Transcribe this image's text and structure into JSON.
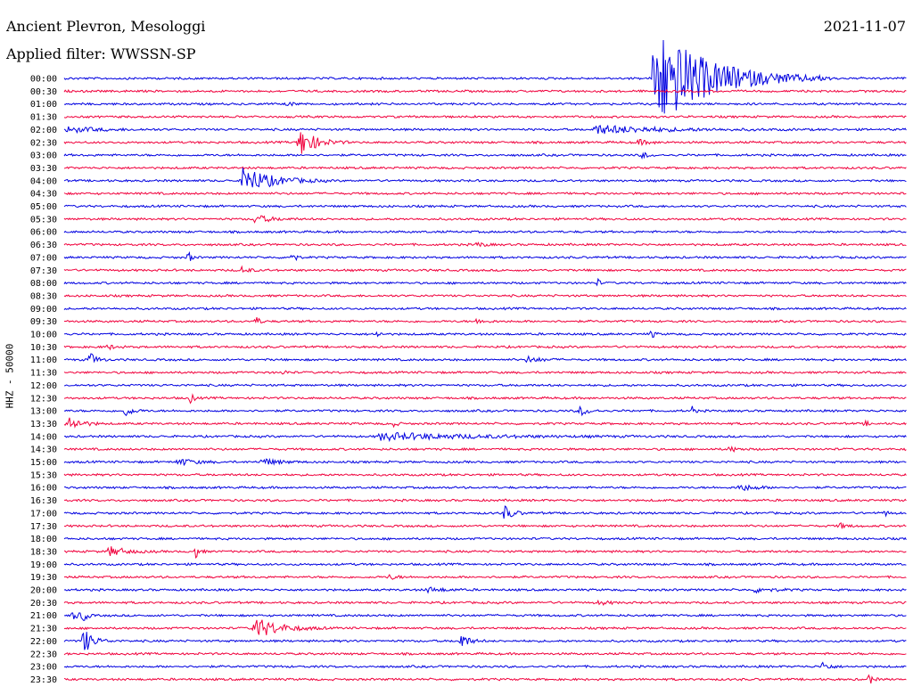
{
  "header": {
    "title": "Ancient Plevron, Mesologgi",
    "subtitle": "Applied filter: WWSSN-SP",
    "date": "2021-11-07"
  },
  "chart_data": {
    "type": "line",
    "title": "Ancient Plevron, Mesologgi",
    "subtitle": "Applied filter: WWSSN-SP",
    "date": "2021-11-07",
    "ylabel": "HHZ - 50000",
    "trace_colors": [
      "#0000e0",
      "#f0003c"
    ],
    "rows": [
      {
        "label": "00:00",
        "events": [
          {
            "x": 0.7,
            "amp": 60,
            "dur": 0.07
          }
        ]
      },
      {
        "label": "00:30",
        "events": []
      },
      {
        "label": "01:00",
        "events": [
          {
            "x": 0.265,
            "amp": 4,
            "dur": 0.005
          }
        ]
      },
      {
        "label": "01:30",
        "events": []
      },
      {
        "label": "02:00",
        "events": [
          {
            "x": 0.63,
            "amp": 5,
            "dur": 0.08
          },
          {
            "x": 0.003,
            "amp": 3,
            "dur": 0.04
          }
        ]
      },
      {
        "label": "02:30",
        "events": [
          {
            "x": 0.278,
            "amp": 18,
            "dur": 0.02
          },
          {
            "x": 0.68,
            "amp": 3,
            "dur": 0.015
          }
        ]
      },
      {
        "label": "03:00",
        "events": [
          {
            "x": 0.687,
            "amp": 5,
            "dur": 0.005
          }
        ]
      },
      {
        "label": "03:30",
        "events": []
      },
      {
        "label": "04:00",
        "events": [
          {
            "x": 0.212,
            "amp": 16,
            "dur": 0.035
          }
        ]
      },
      {
        "label": "04:30",
        "events": []
      },
      {
        "label": "05:00",
        "events": []
      },
      {
        "label": "05:30",
        "events": [
          {
            "x": 0.225,
            "amp": 5,
            "dur": 0.02
          }
        ]
      },
      {
        "label": "06:00",
        "events": []
      },
      {
        "label": "06:30",
        "events": [
          {
            "x": 0.49,
            "amp": 3,
            "dur": 0.01
          }
        ]
      },
      {
        "label": "07:00",
        "events": [
          {
            "x": 0.148,
            "amp": 6,
            "dur": 0.004
          },
          {
            "x": 0.27,
            "amp": 12,
            "dur": 0.004
          }
        ]
      },
      {
        "label": "07:30",
        "events": [
          {
            "x": 0.21,
            "amp": 4,
            "dur": 0.01
          }
        ]
      },
      {
        "label": "08:00",
        "events": [
          {
            "x": 0.633,
            "amp": 5,
            "dur": 0.003
          }
        ]
      },
      {
        "label": "08:30",
        "events": []
      },
      {
        "label": "09:00",
        "events": []
      },
      {
        "label": "09:30",
        "events": [
          {
            "x": 0.228,
            "amp": 5,
            "dur": 0.005
          },
          {
            "x": 0.49,
            "amp": 3,
            "dur": 0.01
          }
        ]
      },
      {
        "label": "10:00",
        "events": [
          {
            "x": 0.37,
            "amp": 5,
            "dur": 0.004
          },
          {
            "x": 0.697,
            "amp": 5,
            "dur": 0.004
          }
        ]
      },
      {
        "label": "10:30",
        "events": [
          {
            "x": 0.05,
            "amp": 3,
            "dur": 0.01
          }
        ]
      },
      {
        "label": "11:00",
        "events": [
          {
            "x": 0.03,
            "amp": 9,
            "dur": 0.008
          },
          {
            "x": 0.55,
            "amp": 4,
            "dur": 0.015
          }
        ]
      },
      {
        "label": "11:30",
        "events": [
          {
            "x": 0.26,
            "amp": 3,
            "dur": 0.005
          }
        ]
      },
      {
        "label": "12:00",
        "events": []
      },
      {
        "label": "12:30",
        "events": [
          {
            "x": 0.15,
            "amp": 9,
            "dur": 0.004
          }
        ]
      },
      {
        "label": "13:00",
        "events": [
          {
            "x": 0.072,
            "amp": 6,
            "dur": 0.01
          },
          {
            "x": 0.612,
            "amp": 6,
            "dur": 0.01
          },
          {
            "x": 0.745,
            "amp": 6,
            "dur": 0.003
          }
        ]
      },
      {
        "label": "13:30",
        "events": [
          {
            "x": 0.003,
            "amp": 10,
            "dur": 0.015
          },
          {
            "x": 0.39,
            "amp": 4,
            "dur": 0.005
          },
          {
            "x": 0.95,
            "amp": 3,
            "dur": 0.005
          }
        ]
      },
      {
        "label": "14:00",
        "events": [
          {
            "x": 0.375,
            "amp": 4,
            "dur": 0.12
          }
        ]
      },
      {
        "label": "14:30",
        "events": [
          {
            "x": 0.79,
            "amp": 3,
            "dur": 0.01
          }
        ]
      },
      {
        "label": "15:00",
        "events": [
          {
            "x": 0.135,
            "amp": 4,
            "dur": 0.02
          },
          {
            "x": 0.235,
            "amp": 4,
            "dur": 0.02
          }
        ]
      },
      {
        "label": "15:30",
        "events": []
      },
      {
        "label": "16:00",
        "events": [
          {
            "x": 0.8,
            "amp": 4,
            "dur": 0.02
          }
        ]
      },
      {
        "label": "16:30",
        "events": []
      },
      {
        "label": "17:00",
        "events": [
          {
            "x": 0.522,
            "amp": 10,
            "dur": 0.01
          },
          {
            "x": 0.974,
            "amp": 4,
            "dur": 0.004
          }
        ]
      },
      {
        "label": "17:30",
        "events": [
          {
            "x": 0.92,
            "amp": 3,
            "dur": 0.01
          }
        ]
      },
      {
        "label": "18:00",
        "events": []
      },
      {
        "label": "18:30",
        "events": [
          {
            "x": 0.053,
            "amp": 6,
            "dur": 0.02
          },
          {
            "x": 0.155,
            "amp": 9,
            "dur": 0.005
          }
        ]
      },
      {
        "label": "19:00",
        "events": []
      },
      {
        "label": "19:30",
        "events": [
          {
            "x": 0.385,
            "amp": 3,
            "dur": 0.01
          }
        ]
      },
      {
        "label": "20:00",
        "events": [
          {
            "x": 0.43,
            "amp": 3,
            "dur": 0.02
          },
          {
            "x": 0.82,
            "amp": 3,
            "dur": 0.02
          }
        ]
      },
      {
        "label": "20:30",
        "events": [
          {
            "x": 0.635,
            "amp": 3,
            "dur": 0.01
          }
        ]
      },
      {
        "label": "21:00",
        "events": [
          {
            "x": 0.01,
            "amp": 5,
            "dur": 0.01
          },
          {
            "x": 0.022,
            "amp": 10,
            "dur": 0.004
          }
        ]
      },
      {
        "label": "21:30",
        "events": [
          {
            "x": 0.225,
            "amp": 13,
            "dur": 0.03
          }
        ]
      },
      {
        "label": "22:00",
        "events": [
          {
            "x": 0.022,
            "amp": 16,
            "dur": 0.012
          },
          {
            "x": 0.47,
            "amp": 10,
            "dur": 0.01
          }
        ]
      },
      {
        "label": "22:30",
        "events": []
      },
      {
        "label": "23:00",
        "events": [
          {
            "x": 0.9,
            "amp": 6,
            "dur": 0.008
          }
        ]
      },
      {
        "label": "23:30",
        "events": [
          {
            "x": 0.955,
            "amp": 7,
            "dur": 0.005
          }
        ]
      }
    ]
  }
}
